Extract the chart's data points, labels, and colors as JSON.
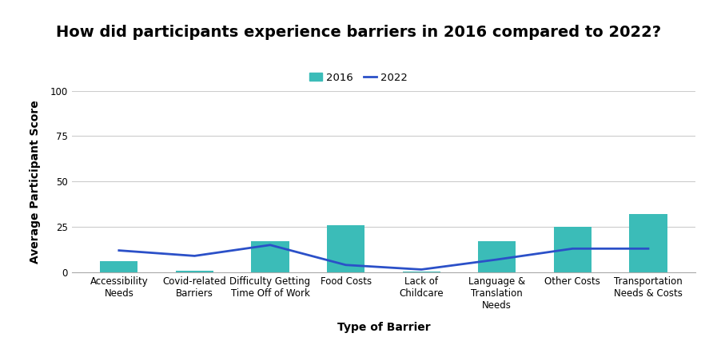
{
  "title": "How did participants experience barriers in 2016 compared to 2022?",
  "xlabel": "Type of Barrier",
  "ylabel": "Average Participant Score",
  "categories": [
    "Accessibility\nNeeds",
    "Covid-related\nBarriers",
    "Difficulty Getting\nTime Off of Work",
    "Food Costs",
    "Lack of\nChildcare",
    "Language &\nTranslation\nNeeds",
    "Other Costs",
    "Transportation\nNeeds & Costs"
  ],
  "bar_values_2016": [
    6,
    1,
    17,
    26,
    0.5,
    17,
    25,
    32
  ],
  "line_values_2022": [
    12,
    9,
    15,
    4,
    1.5,
    7,
    13,
    13
  ],
  "bar_color": "#3bbcb8",
  "line_color": "#2b50c8",
  "ylim": [
    0,
    100
  ],
  "yticks": [
    0,
    25,
    50,
    75,
    100
  ],
  "background_color": "#ffffff",
  "grid_color": "#cccccc",
  "title_fontsize": 14,
  "axis_label_fontsize": 10,
  "tick_fontsize": 8.5,
  "legend_2016": "2016",
  "legend_2022": "2022"
}
